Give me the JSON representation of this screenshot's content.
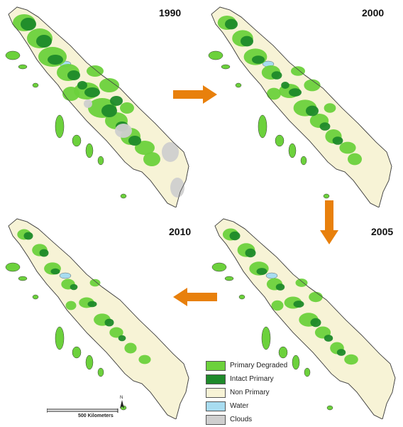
{
  "maps": [
    {
      "year": "1990",
      "has_clouds": true
    },
    {
      "year": "2000",
      "has_clouds": false
    },
    {
      "year": "2005",
      "has_clouds": false
    },
    {
      "year": "2010",
      "has_clouds": false
    }
  ],
  "legend": [
    {
      "label": "Primary Degraded",
      "color": "#6cd13c"
    },
    {
      "label": "Intact Primary",
      "color": "#1e8a2a"
    },
    {
      "label": "Non Primary",
      "color": "#f7f3d6"
    },
    {
      "label": "Water",
      "color": "#a8dcf0"
    },
    {
      "label": "Clouds",
      "color": "#cfcfcf"
    }
  ],
  "scale": {
    "label": "500 Kilometers"
  },
  "arrow_color": "#e8800c"
}
